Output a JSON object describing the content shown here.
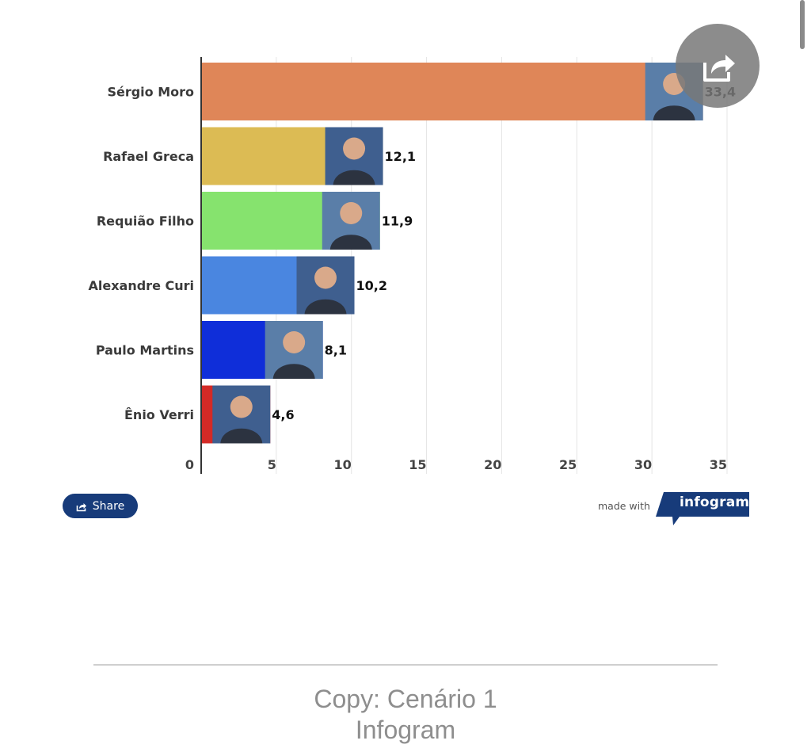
{
  "chart_data": {
    "type": "bar",
    "orientation": "horizontal",
    "categories": [
      "Sérgio Moro",
      "Rafael Greca",
      "Requião Filho",
      "Alexandre Curi",
      "Paulo Martins",
      "Ênio Verri"
    ],
    "values": [
      33.4,
      12.1,
      11.9,
      10.2,
      8.1,
      4.6
    ],
    "value_labels": [
      "33,4",
      "12,1",
      "11,9",
      "10,2",
      "8,1",
      "4,6"
    ],
    "colors": [
      "#df8658",
      "#dcbb54",
      "#86e36e",
      "#4a86e0",
      "#0f2ed9",
      "#d42a26"
    ],
    "xlim": [
      0,
      35
    ],
    "xticks": [
      "0",
      "5",
      "10",
      "15",
      "20",
      "25",
      "30",
      "35"
    ],
    "grid": true,
    "has_photos": true
  },
  "share_button": {
    "label": "Share",
    "icon": "share-icon"
  },
  "branding": {
    "made_with": "made with",
    "logo_text": "infogram",
    "color": "#173b7a"
  },
  "caption": {
    "line1": "Copy: Cenário 1",
    "line2": "Infogram"
  }
}
